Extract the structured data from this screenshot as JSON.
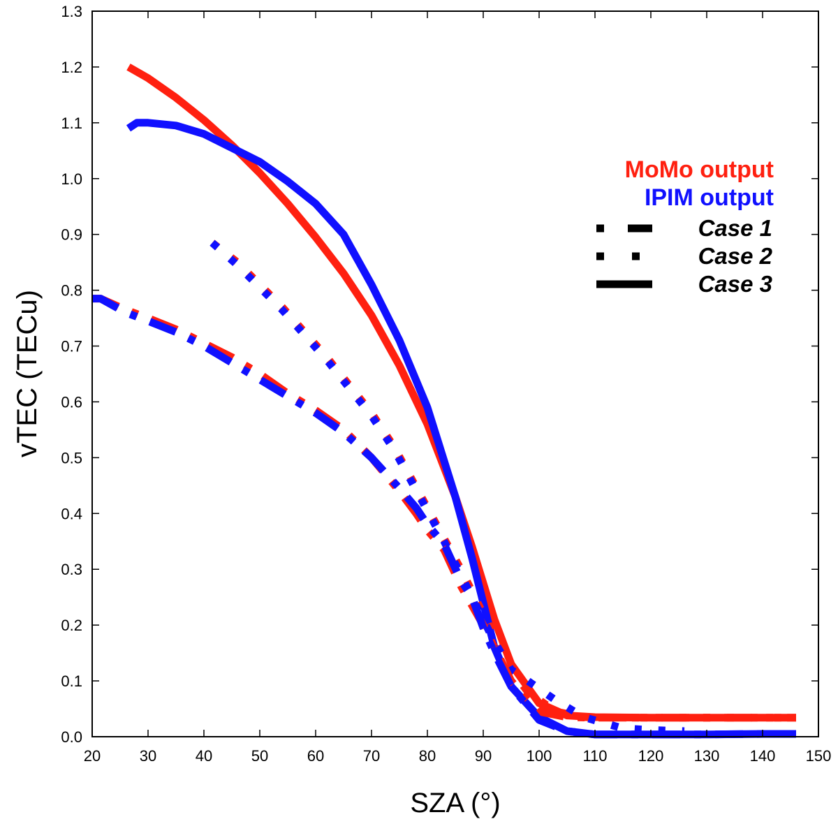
{
  "chart_data": {
    "type": "line",
    "xlabel": "SZA (°)",
    "ylabel": "vTEC (TECu)",
    "xlim": [
      20,
      150
    ],
    "ylim": [
      0.0,
      1.3
    ],
    "xticks": [
      20,
      30,
      40,
      50,
      60,
      70,
      80,
      90,
      100,
      110,
      120,
      130,
      140,
      150
    ],
    "yticks": [
      "0.0",
      "0.1",
      "0.2",
      "0.3",
      "0.4",
      "0.5",
      "0.6",
      "0.7",
      "0.8",
      "0.9",
      "1.0",
      "1.1",
      "1.2",
      "1.3"
    ],
    "grid": false,
    "legend_position": "top-right",
    "models": [
      {
        "label": "MoMo output",
        "color": "#ff2010"
      },
      {
        "label": "IPIM output",
        "color": "#1010ff"
      }
    ],
    "cases": [
      {
        "label": "Case 1",
        "style": "dash-dot"
      },
      {
        "label": "Case 2",
        "style": "dotted"
      },
      {
        "label": "Case 3",
        "style": "solid"
      }
    ],
    "series": [
      {
        "model": "MoMo output",
        "case": "Case 3",
        "color": "#ff2010",
        "x": [
          26.5,
          30,
          35,
          40,
          45,
          50,
          55,
          60,
          65,
          70,
          75,
          80,
          85,
          88,
          90,
          92,
          95,
          100,
          105,
          110,
          120,
          130,
          140,
          146
        ],
        "y": [
          1.2,
          1.18,
          1.145,
          1.105,
          1.06,
          1.01,
          0.955,
          0.895,
          0.83,
          0.755,
          0.665,
          0.56,
          0.43,
          0.34,
          0.275,
          0.21,
          0.13,
          0.06,
          0.038,
          0.035,
          0.034,
          0.034,
          0.034,
          0.034
        ]
      },
      {
        "model": "IPIM output",
        "case": "Case 3",
        "color": "#1010ff",
        "x": [
          26.5,
          28,
          30,
          35,
          40,
          45,
          50,
          55,
          60,
          65,
          70,
          75,
          80,
          85,
          88,
          90,
          92,
          95,
          100,
          105,
          110,
          120,
          130,
          140,
          146
        ],
        "y": [
          1.09,
          1.1,
          1.1,
          1.095,
          1.08,
          1.055,
          1.03,
          0.995,
          0.955,
          0.9,
          0.81,
          0.71,
          0.59,
          0.43,
          0.32,
          0.24,
          0.16,
          0.09,
          0.035,
          0.01,
          0.004,
          0.004,
          0.004,
          0.005,
          0.005
        ]
      },
      {
        "model": "MoMo output",
        "case": "Case 2",
        "color": "#ff2010",
        "x": [
          41.5,
          46,
          50,
          54,
          58,
          62,
          66,
          70,
          74,
          77,
          80,
          83,
          86,
          89,
          92,
          95,
          98,
          103,
          108,
          115,
          122,
          130,
          140,
          146
        ],
        "y": [
          0.885,
          0.85,
          0.81,
          0.77,
          0.725,
          0.68,
          0.63,
          0.58,
          0.52,
          0.465,
          0.41,
          0.355,
          0.3,
          0.24,
          0.18,
          0.12,
          0.08,
          0.045,
          0.035,
          0.034,
          0.034,
          0.034,
          0.034,
          0.034
        ]
      },
      {
        "model": "IPIM output",
        "case": "Case 2",
        "color": "#1010ff",
        "x": [
          41.5,
          46,
          50,
          54,
          58,
          62,
          66,
          70,
          74,
          77,
          80,
          83,
          86,
          89,
          92,
          95,
          98,
          103,
          108,
          115,
          120,
          126
        ],
        "y": [
          0.885,
          0.845,
          0.805,
          0.765,
          0.72,
          0.675,
          0.625,
          0.575,
          0.515,
          0.46,
          0.405,
          0.35,
          0.29,
          0.23,
          0.17,
          0.12,
          0.1,
          0.065,
          0.035,
          0.015,
          0.012,
          0.01
        ]
      },
      {
        "model": "MoMo output",
        "case": "Case 1",
        "color": "#ff2010",
        "x": [
          20,
          21.5,
          26,
          30,
          35,
          40,
          45,
          50,
          55,
          60,
          65,
          70,
          75,
          78,
          80,
          83,
          86,
          88,
          90,
          92,
          95,
          100,
          105,
          110,
          120,
          130,
          140,
          146
        ],
        "y": [
          0.785,
          0.785,
          0.765,
          0.75,
          0.73,
          0.705,
          0.68,
          0.65,
          0.615,
          0.585,
          0.55,
          0.5,
          0.44,
          0.4,
          0.37,
          0.335,
          0.27,
          0.235,
          0.2,
          0.16,
          0.1,
          0.045,
          0.035,
          0.034,
          0.034,
          0.034,
          0.034,
          0.034
        ]
      },
      {
        "model": "IPIM output",
        "case": "Case 1",
        "color": "#1010ff",
        "x": [
          20,
          21.5,
          26,
          30,
          35,
          40,
          45,
          50,
          55,
          60,
          65,
          70,
          75,
          78,
          80,
          83,
          86,
          88,
          90,
          92,
          95,
          100,
          105,
          110,
          120,
          130,
          140,
          146
        ],
        "y": [
          0.785,
          0.785,
          0.76,
          0.745,
          0.725,
          0.7,
          0.67,
          0.64,
          0.61,
          0.58,
          0.545,
          0.5,
          0.445,
          0.41,
          0.38,
          0.345,
          0.28,
          0.25,
          0.195,
          0.15,
          0.09,
          0.03,
          0.01,
          0.004,
          0.004,
          0.004,
          0.005,
          0.005
        ]
      }
    ]
  }
}
